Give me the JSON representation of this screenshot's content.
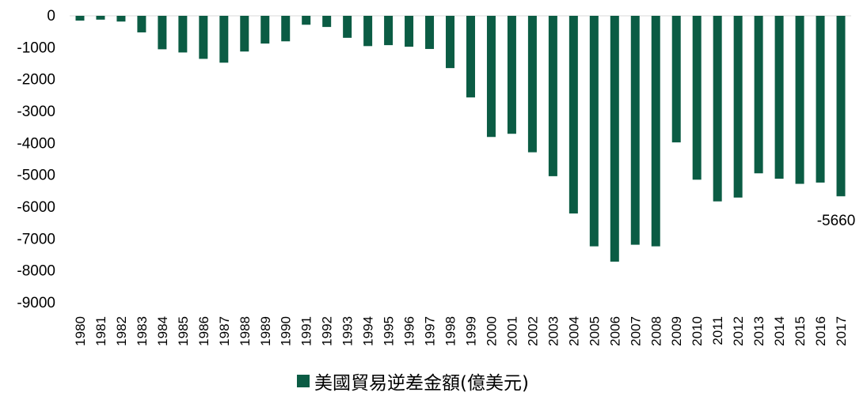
{
  "chart_data": {
    "type": "bar",
    "categories": [
      "1980",
      "1981",
      "1982",
      "1983",
      "1984",
      "1985",
      "1986",
      "1987",
      "1988",
      "1989",
      "1990",
      "1991",
      "1992",
      "1993",
      "1994",
      "1995",
      "1996",
      "1997",
      "1998",
      "1999",
      "2000",
      "2001",
      "2002",
      "2003",
      "2004",
      "2005",
      "2006",
      "2007",
      "2008",
      "2009",
      "2010",
      "2011",
      "2012",
      "2013",
      "2014",
      "2015",
      "2016",
      "2017"
    ],
    "series": [
      {
        "name": "美國貿易逆差金額(億美元)",
        "color": "#0b5c44",
        "values": [
          -150,
          -120,
          -180,
          -520,
          -1050,
          -1150,
          -1350,
          -1470,
          -1120,
          -870,
          -800,
          -280,
          -350,
          -690,
          -950,
          -920,
          -970,
          -1040,
          -1640,
          -2560,
          -3800,
          -3700,
          -4280,
          -5030,
          -6200,
          -7230,
          -7710,
          -7180,
          -7230,
          -3970,
          -5140,
          -5820,
          -5700,
          -4940,
          -5110,
          -5270,
          -5230,
          -5660
        ]
      }
    ],
    "yticks": [
      "0",
      "-1000",
      "-2000",
      "-3000",
      "-4000",
      "-5000",
      "-6000",
      "-7000",
      "-8000",
      "-9000"
    ],
    "ylim": [
      -9000,
      0
    ],
    "annotation": "-5660",
    "legend": "bottom",
    "grid": false
  }
}
